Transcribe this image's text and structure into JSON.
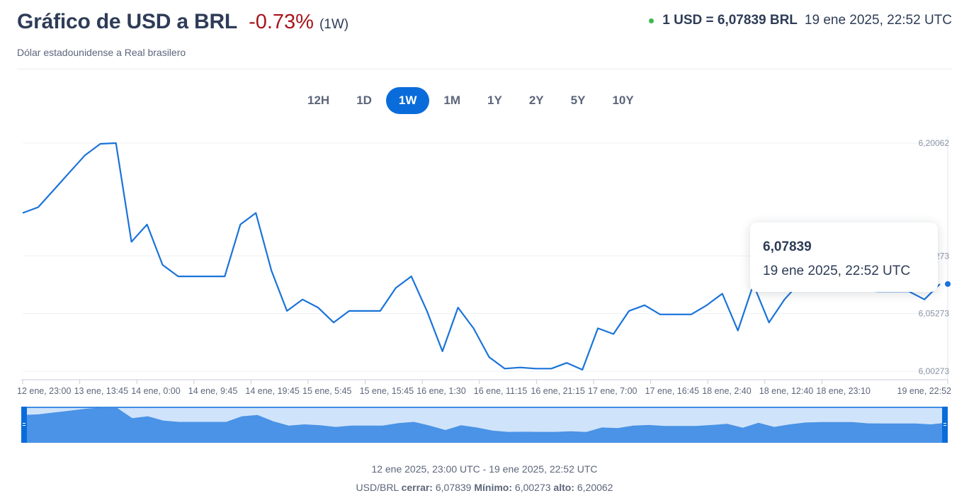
{
  "header": {
    "title": "Gráfico de USD a BRL",
    "change": "-0.73%",
    "period": "(1W)",
    "subtitle": "Dólar estadounidense a Real brasilero",
    "rate": "1 USD = 6,07839 BRL",
    "rate_time": "19 ene 2025, 22:52 UTC"
  },
  "tabs": [
    {
      "label": "12H",
      "active": false
    },
    {
      "label": "1D",
      "active": false
    },
    {
      "label": "1W",
      "active": true
    },
    {
      "label": "1M",
      "active": false
    },
    {
      "label": "1Y",
      "active": false
    },
    {
      "label": "2Y",
      "active": false
    },
    {
      "label": "5Y",
      "active": false
    },
    {
      "label": "10Y",
      "active": false
    }
  ],
  "tooltip": {
    "value": "6,07839",
    "time": "19 ene 2025, 22:52 UTC"
  },
  "footer": {
    "range": "12 ene 2025, 23:00 UTC - 19 ene 2025, 22:52 UTC",
    "pair": "USD/BRL",
    "close_label": "cerrar:",
    "close_value": "6,07839",
    "min_label": "Mínimo:",
    "min_value": "6,00273",
    "max_label": "alto:",
    "max_value": "6,20062"
  },
  "colors": {
    "line": "#1a73d9",
    "accent": "#0a6cdb",
    "negative": "#a8151b",
    "live": "#3fb950",
    "navigator_fill": "#4a93e6",
    "navigator_bg": "#cfe3fb"
  },
  "chart_data": {
    "type": "line",
    "title": "Gráfico de USD a BRL",
    "series": [
      {
        "name": "USD/BRL",
        "x": [
          "12 ene, 23:00",
          "13 ene, 03:00",
          "13 ene, 06:00",
          "13 ene, 09:00",
          "13 ene, 10:30",
          "13 ene, 12:00",
          "13 ene, 13:45",
          "13 ene, 15:00",
          "13 ene, 16:30",
          "13 ene, 18:00",
          "13 ene, 20:00",
          "14 ene, 0:00",
          "14 ene, 04:00",
          "14 ene, 07:30",
          "14 ene, 08:30",
          "14 ene, 09:45",
          "14 ene, 11:00",
          "14 ene, 12:30",
          "14 ene, 14:00",
          "14 ene, 15:30",
          "14 ene, 17:00",
          "14 ene, 19:45",
          "15 ene, 0:00",
          "15 ene, 5:45",
          "15 ene, 8:30",
          "15 ene, 10:00",
          "15 ene, 11:30",
          "15 ene, 12:30",
          "15 ene, 13:30",
          "15 ene, 14:30",
          "15 ene, 15:45",
          "15 ene, 18:00",
          "15 ene, 20:00",
          "16 ene, 1:30",
          "16 ene, 6:00",
          "16 ene, 9:30",
          "16 ene, 11:15",
          "16 ene, 13:00",
          "16 ene, 15:00",
          "16 ene, 16:30",
          "16 ene, 18:30",
          "16 ene, 21:15",
          "17 ene, 4:00",
          "17 ene, 7:00",
          "17 ene, 8:30",
          "17 ene, 10:00",
          "17 ene, 12:00",
          "17 ene, 14:00",
          "17 ene, 16:45",
          "17 ene, 19:30",
          "17 ene, 22:00",
          "18 ene, 2:40",
          "18 ene, 7:00",
          "18 ene, 12:40",
          "18 ene, 18:00",
          "18 ene, 23:10",
          "19 ene, 10:00",
          "19 ene, 20:30",
          "19 ene, 21:30",
          "19 ene, 22:52"
        ],
        "values": [
          6.14,
          6.145,
          6.16,
          6.175,
          6.19,
          6.2,
          6.2006,
          6.115,
          6.13,
          6.095,
          6.085,
          6.085,
          6.085,
          6.085,
          6.13,
          6.14,
          6.09,
          6.055,
          6.065,
          6.058,
          6.045,
          6.055,
          6.055,
          6.055,
          6.075,
          6.085,
          6.055,
          6.02,
          6.058,
          6.04,
          6.015,
          6.005,
          6.006,
          6.005,
          6.005,
          6.01,
          6.004,
          6.04,
          6.035,
          6.055,
          6.06,
          6.052,
          6.052,
          6.052,
          6.06,
          6.07,
          6.038,
          6.078,
          6.045,
          6.065,
          6.08,
          6.084,
          6.084,
          6.084,
          6.073,
          6.072,
          6.072,
          6.072,
          6.065,
          6.0784
        ]
      }
    ],
    "x_tick_labels": [
      "12 ene, 23:00",
      "13 ene, 13:45",
      "14 ene, 0:00",
      "14 ene, 9:45",
      "14 ene, 19:45",
      "15 ene, 5:45",
      "15 ene, 15:45",
      "16 ene, 1:30",
      "16 ene, 11:15",
      "16 ene, 21:15",
      "17 ene, 7:00",
      "17 ene, 16:45",
      "18 ene, 2:40",
      "18 ene, 12:40",
      "18 ene, 23:10",
      "19 ene, 22:52"
    ],
    "y_tick_labels": [
      "6,20062",
      "6,10273",
      "6,05273",
      "6,00273"
    ],
    "y_ticks": [
      6.20062,
      6.10273,
      6.05273,
      6.00273
    ],
    "ylim": [
      6.00273,
      6.20062
    ],
    "grid": true,
    "legend": "none"
  }
}
